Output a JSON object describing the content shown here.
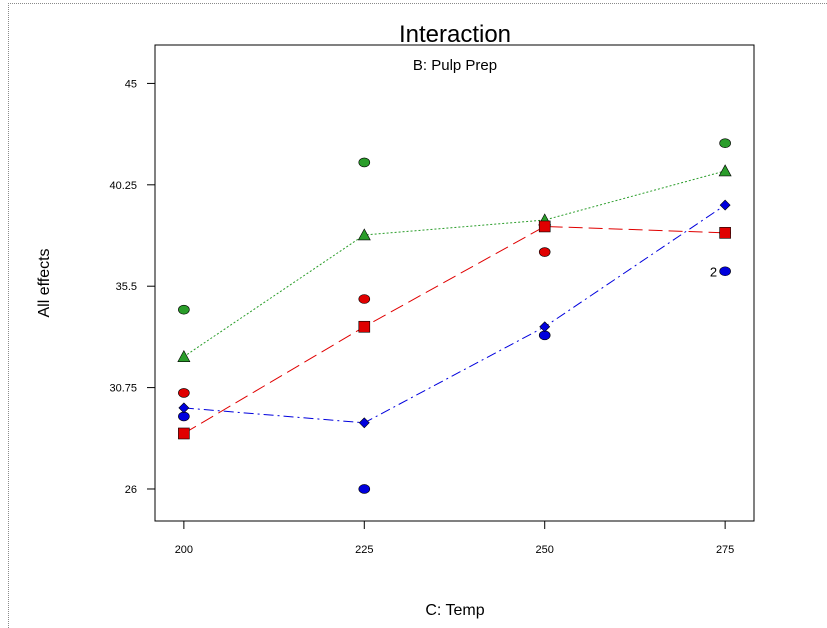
{
  "chart_data": {
    "type": "line",
    "title": "Interaction",
    "subtitle": "B: Pulp Prep",
    "xlabel": "C: Temp",
    "ylabel": "All effects",
    "x": [
      200,
      225,
      250,
      275
    ],
    "xlim": [
      196,
      279
    ],
    "ylim": [
      24.5,
      46.8
    ],
    "y_ticks": [
      26,
      30.75,
      35.5,
      40.25,
      45
    ],
    "y_tick_labels": [
      "26",
      "30.75",
      "35.5",
      "40.25",
      "45"
    ],
    "x_tick_labels": [
      "200",
      "225",
      "250",
      "275"
    ],
    "series": [
      {
        "color": "#2a9d2a",
        "marker": "triangle",
        "line": "dotted",
        "values": [
          32.2,
          37.9,
          38.6,
          40.9
        ],
        "observations": [
          [
            200,
            34.4
          ],
          [
            225,
            41.3
          ],
          [
            250,
            38.4
          ],
          [
            275,
            42.2
          ]
        ]
      },
      {
        "color": "#e00000",
        "marker": "square",
        "line": "dashed",
        "values": [
          28.6,
          33.6,
          38.3,
          38.0
        ],
        "observations": [
          [
            200,
            30.5
          ],
          [
            225,
            34.9
          ],
          [
            250,
            37.1
          ],
          [
            275,
            38.0
          ]
        ]
      },
      {
        "color": "#0000dd",
        "marker": "diamond",
        "line": "dashdot",
        "values": [
          29.8,
          29.1,
          33.6,
          39.3
        ],
        "observations": [
          [
            200,
            29.4
          ],
          [
            225,
            26.0
          ],
          [
            250,
            33.2
          ],
          [
            275,
            36.2
          ]
        ]
      }
    ],
    "annotations": [
      {
        "text": "2",
        "x": 275,
        "y": 36.2
      }
    ],
    "grid": false
  }
}
